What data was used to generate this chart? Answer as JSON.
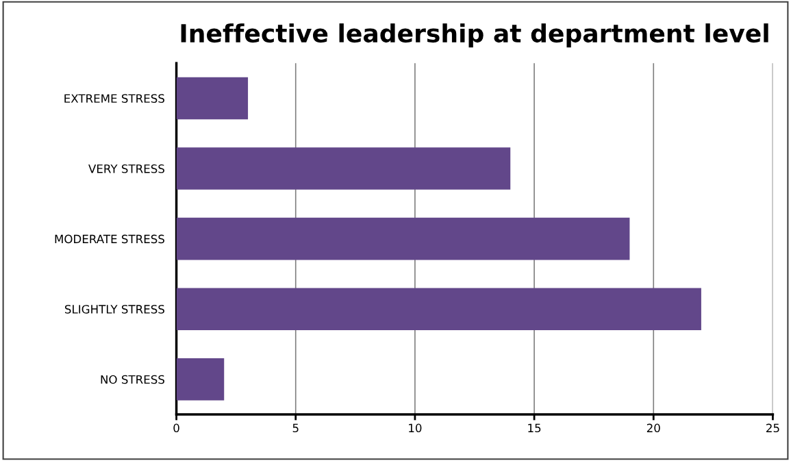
{
  "chart_data": {
    "type": "bar",
    "orientation": "horizontal",
    "title": "Ineffective leadership at department level",
    "categories": [
      "EXTREME STRESS",
      "VERY STRESS",
      "MODERATE STRESS",
      "SLIGHTLY STRESS",
      "NO STRESS"
    ],
    "values": [
      3,
      14,
      19,
      22,
      2
    ],
    "color": "#62478a",
    "xlim": [
      0,
      25
    ],
    "xticks": [
      0,
      5,
      10,
      15,
      20,
      25
    ],
    "grid": "x",
    "legend": false
  }
}
